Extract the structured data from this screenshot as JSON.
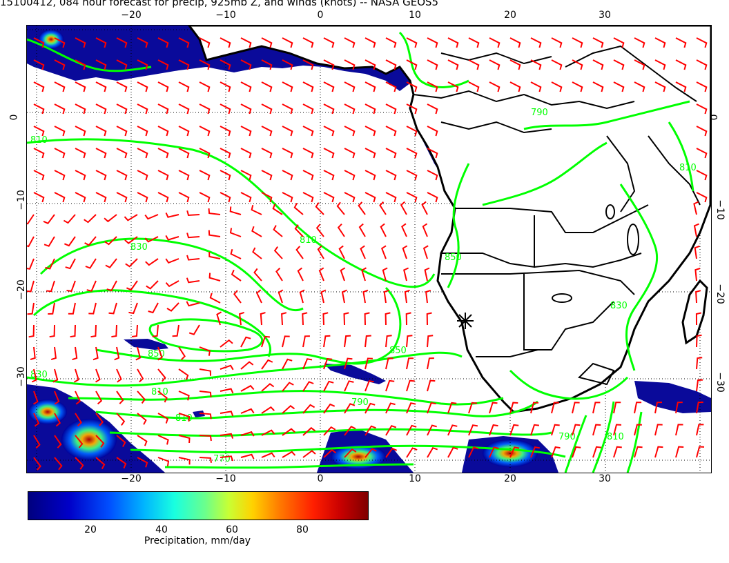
{
  "title": "15100412, 084 hour forecast for precip, 925mb Z, and winds (knots) -- NASA GEOS5",
  "axes": {
    "top_lon_labels": [
      "−20",
      "−10",
      "0",
      "10",
      "20",
      "30"
    ],
    "bottom_lon_labels": [
      "−20",
      "−10",
      "0",
      "10",
      "20",
      "30"
    ],
    "left_lat_labels": [
      "0",
      "−10",
      "−20",
      "−30"
    ],
    "right_lat_labels": [
      "0",
      "−10",
      "−20",
      "−30"
    ]
  },
  "contour_labels": [
    "810",
    "830",
    "850",
    "850",
    "830",
    "810",
    "790",
    "810",
    "770",
    "790",
    "810",
    "850",
    "830",
    "810",
    "810",
    "790"
  ],
  "colorbar": {
    "ticks": [
      "20",
      "40",
      "60",
      "80"
    ],
    "title": "Precipitation, mm/day"
  },
  "colors": {
    "contour": "#00ff00",
    "wind_barb": "#ff0000",
    "coast": "#000000",
    "precip_low": "#00007f",
    "precip_high": "#7f0000"
  },
  "icons": [
    "wind-barb-icon",
    "location-star-icon"
  ]
}
